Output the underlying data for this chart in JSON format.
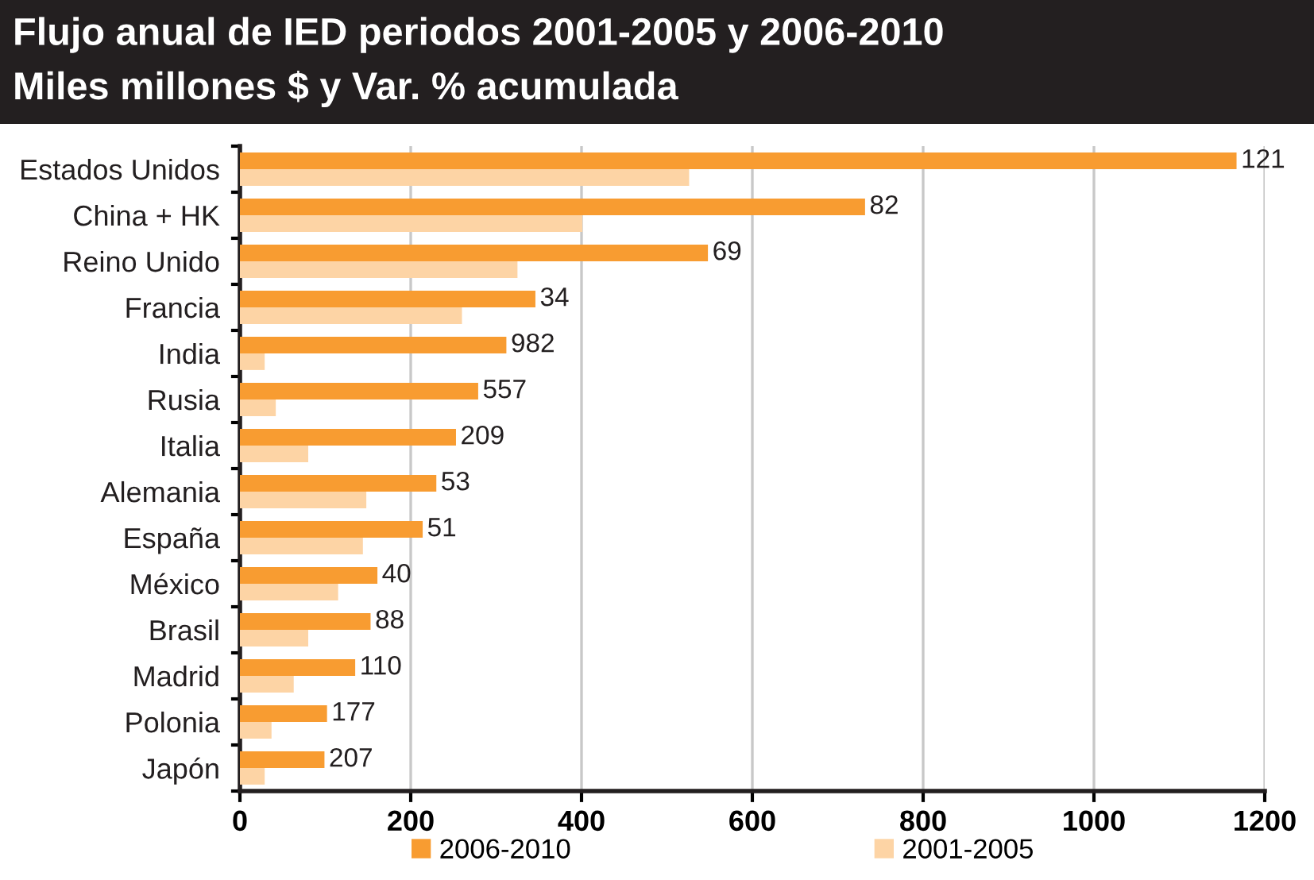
{
  "chart_data": {
    "type": "bar",
    "orientation": "horizontal",
    "title": "Flujo anual de IED periodos 2001-2005 y 2006-2010",
    "subtitle": "Miles millones $ y Var. % acumulada",
    "categories": [
      "Estados Unidos",
      "China + HK",
      "Reino Unido",
      "Francia",
      "India",
      "Rusia",
      "Italia",
      "Alemania",
      "España",
      "México",
      "Brasil",
      "Madrid",
      "Polonia",
      "Japón"
    ],
    "series": [
      {
        "name": "2006-2010",
        "color": "#f89c31",
        "values": [
          1167,
          732,
          548,
          346,
          312,
          279,
          253,
          230,
          214,
          161,
          153,
          135,
          102,
          99
        ]
      },
      {
        "name": "2001-2005",
        "color": "#fdd4a5",
        "values": [
          526,
          401,
          325,
          260,
          29,
          42,
          80,
          148,
          144,
          115,
          80,
          63,
          37,
          29
        ]
      }
    ],
    "annotations": [
      {
        "text": "121",
        "x": 1167,
        "y": "Estados Unidos"
      },
      {
        "text": "82",
        "x": 732,
        "y": "China + HK"
      },
      {
        "text": "69",
        "x": 548,
        "y": "Reino Unido"
      },
      {
        "text": "34",
        "x": 346,
        "y": "Francia"
      },
      {
        "text": "982",
        "x": 312,
        "y": "India"
      },
      {
        "text": "557",
        "x": 279,
        "y": "Rusia"
      },
      {
        "text": "209",
        "x": 253,
        "y": "Italia"
      },
      {
        "text": "53",
        "x": 230,
        "y": "Alemania"
      },
      {
        "text": "51",
        "x": 214,
        "y": "España"
      },
      {
        "text": "40",
        "x": 161,
        "y": "México"
      },
      {
        "text": "88",
        "x": 153,
        "y": "Brasil"
      },
      {
        "text": "110",
        "x": 135,
        "y": "Madrid"
      },
      {
        "text": "177",
        "x": 102,
        "y": "Polonia"
      },
      {
        "text": "207",
        "x": 99,
        "y": "Japón"
      }
    ],
    "xlim": [
      0,
      1200
    ],
    "xticks": [
      0,
      200,
      400,
      600,
      800,
      1000,
      1200
    ],
    "grid": "x",
    "legend": "bottom"
  }
}
